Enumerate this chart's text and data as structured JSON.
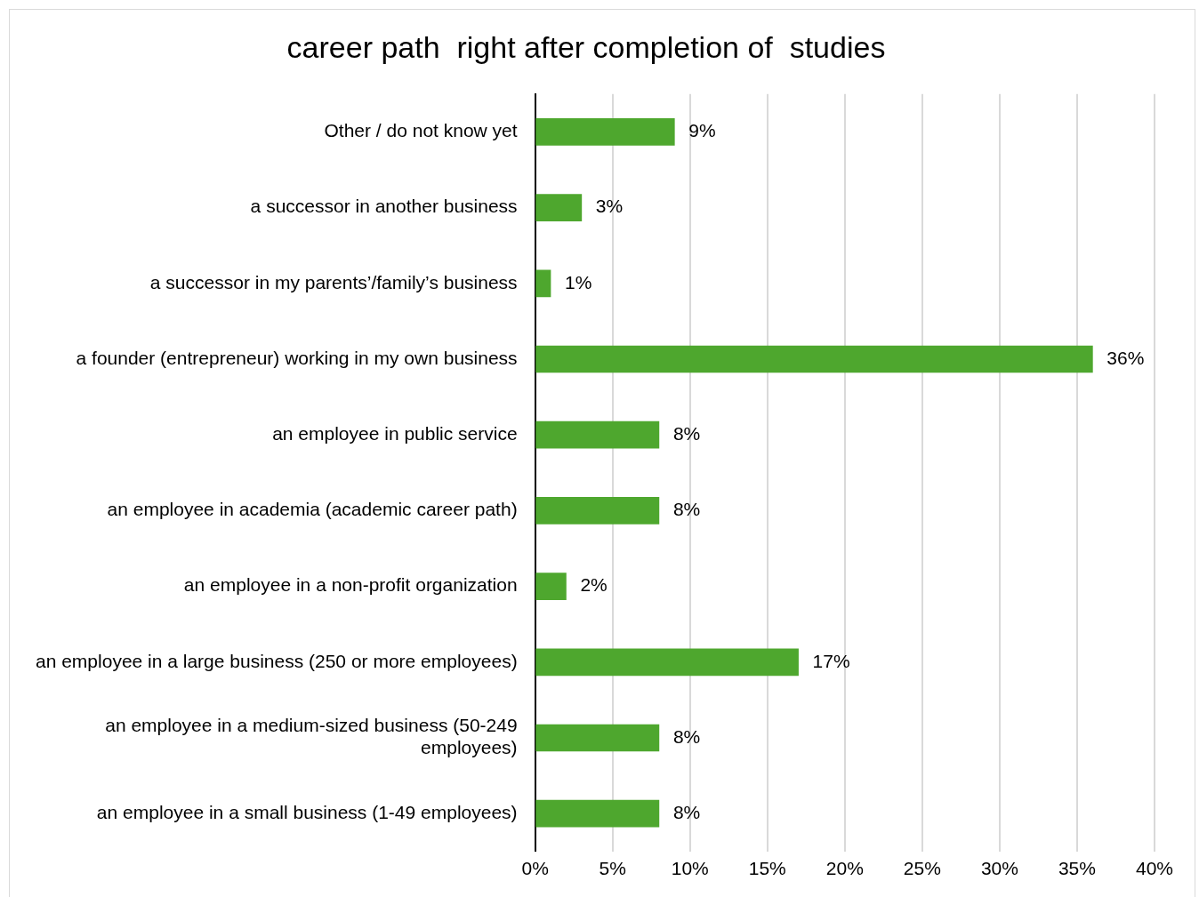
{
  "chart_data": {
    "type": "bar",
    "orientation": "horizontal",
    "title": "career path  right after completion of  studies",
    "categories": [
      "Other / do not know yet",
      "a successor in another business",
      "a successor in my parents’/family’s business",
      "a founder (entrepreneur) working in my own business",
      "an employee in public service",
      "an employee in academia (academic career path)",
      "an employee in a non-profit organization",
      "an employee in a large business (250 or more employees)",
      "an employee in a medium-sized business (50-249 employees)",
      "an employee in a small business (1-49 employees)"
    ],
    "values": [
      9,
      3,
      1,
      36,
      8,
      8,
      2,
      17,
      8,
      8
    ],
    "value_labels": [
      "9%",
      "3%",
      "1%",
      "36%",
      "8%",
      "8%",
      "2%",
      "17%",
      "8%",
      "8%"
    ],
    "color": "#4ea72e",
    "xlim": [
      0,
      40
    ],
    "xticks": [
      {
        "value": 0,
        "label": "0%"
      },
      {
        "value": 5,
        "label": "5%"
      },
      {
        "value": 10,
        "label": "10%"
      },
      {
        "value": 15,
        "label": "15%"
      },
      {
        "value": 20,
        "label": "20%"
      },
      {
        "value": 25,
        "label": "25%"
      },
      {
        "value": 30,
        "label": "30%"
      },
      {
        "value": 35,
        "label": "35%"
      },
      {
        "value": 40,
        "label": "40%"
      }
    ],
    "grid": "x",
    "legend": false
  }
}
